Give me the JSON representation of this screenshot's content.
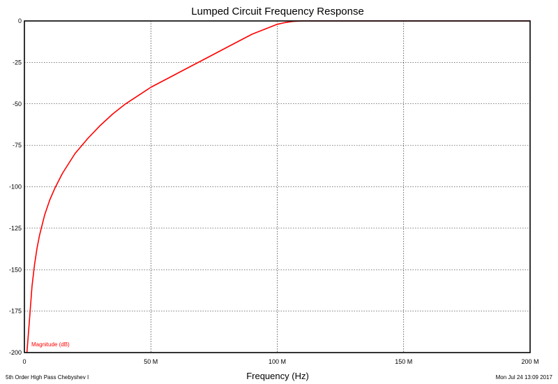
{
  "chart_data": {
    "type": "line",
    "title": "Lumped Circuit Frequency Response",
    "xlabel": "Frequency (Hz)",
    "ylabel": "",
    "xlim": [
      0,
      200000000
    ],
    "ylim": [
      -200,
      0
    ],
    "grid": true,
    "x_ticks": [
      {
        "value": 0,
        "label": "0"
      },
      {
        "value": 50000000,
        "label": "50 M"
      },
      {
        "value": 100000000,
        "label": "100 M"
      },
      {
        "value": 150000000,
        "label": "150 M"
      },
      {
        "value": 200000000,
        "label": "200 M"
      }
    ],
    "y_ticks": [
      {
        "value": 0,
        "label": "0"
      },
      {
        "value": -25,
        "label": "-25"
      },
      {
        "value": -50,
        "label": "-50"
      },
      {
        "value": -75,
        "label": "-75"
      },
      {
        "value": -100,
        "label": "-100"
      },
      {
        "value": -125,
        "label": "-125"
      },
      {
        "value": -150,
        "label": "-150"
      },
      {
        "value": -175,
        "label": "-175"
      },
      {
        "value": -200,
        "label": "-200"
      }
    ],
    "series": [
      {
        "name": "Magnitude (dB)",
        "color": "#ff0000",
        "x": [
          1000000,
          2000000,
          3000000,
          4000000,
          5000000,
          6000000,
          8000000,
          10000000,
          12000000,
          15000000,
          20000000,
          25000000,
          30000000,
          35000000,
          40000000,
          45000000,
          50000000,
          55000000,
          60000000,
          65000000,
          70000000,
          75000000,
          80000000,
          85000000,
          90000000,
          95000000,
          100000000,
          103000000,
          106000000,
          110000000,
          120000000,
          150000000,
          200000000
        ],
        "y": [
          -200,
          -180,
          -160,
          -147,
          -137,
          -129,
          -117,
          -108,
          -101,
          -92,
          -80,
          -71,
          -63,
          -56,
          -50,
          -45,
          -40,
          -36,
          -32,
          -28,
          -24,
          -20,
          -16,
          -12,
          -8,
          -5,
          -2,
          -1,
          -0.3,
          0,
          0,
          0,
          0
        ]
      }
    ]
  },
  "footer": {
    "left": "5th Order High Pass Chebyshev I",
    "right": "Mon Jul 24 13:09 2017"
  }
}
